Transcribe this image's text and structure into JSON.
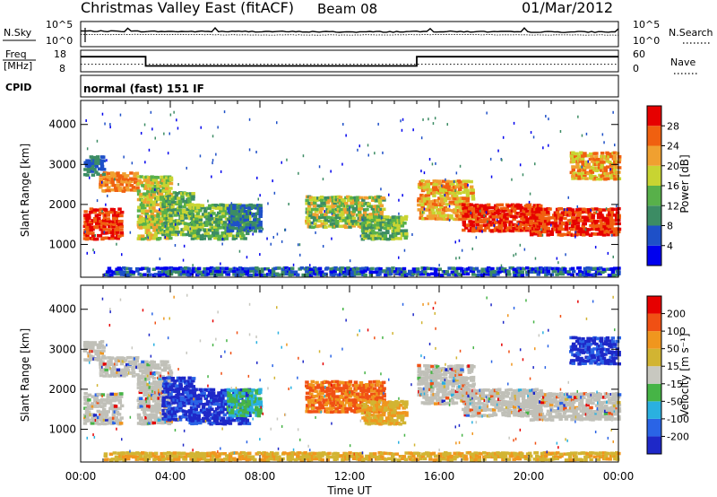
{
  "header": {
    "title": "Christmas Valley East (fitACF)",
    "beam": "Beam 08",
    "date": "01/Mar/2012"
  },
  "colors": {
    "power_scale": [
      "#0000ee",
      "#1e50c8",
      "#3c8c64",
      "#58b04a",
      "#c8d432",
      "#f0a030",
      "#f06010",
      "#e60000"
    ],
    "velocity_scale": [
      "#1e28c8",
      "#2a64e6",
      "#2ab0e0",
      "#46b446",
      "#c8c8c0",
      "#d2b432",
      "#f0961e",
      "#f05014",
      "#e60000"
    ],
    "ground_scatter": "#c0c0b8"
  },
  "chart_data": [
    {
      "type": "line",
      "panel": "noise",
      "left_label": "N.Sky",
      "right_label": "N.Search",
      "left_ticks": [
        "10^5",
        "10^0"
      ],
      "right_ticks": [
        "10^5",
        "10^0"
      ],
      "x": [
        "00:00",
        "04:00",
        "08:00",
        "12:00",
        "16:00",
        "20:00",
        "00:00"
      ],
      "series": [
        {
          "values": [
            3.2,
            3.1,
            3.1,
            3.0,
            3.1,
            3.0,
            3.0
          ]
        },
        {
          "values": [
            2.4,
            2.4,
            2.3,
            2.3,
            2.4,
            2.3,
            2.3
          ]
        }
      ]
    },
    {
      "type": "line",
      "panel": "frequency",
      "left_label_lines": [
        "Freq",
        "[MHz]"
      ],
      "right_label": "Nave",
      "left_ticks": [
        "18",
        "8"
      ],
      "right_ticks": [
        "60",
        "0"
      ],
      "ylim": [
        8,
        18
      ],
      "points": [
        [
          0,
          15
        ],
        [
          2.9,
          15
        ],
        [
          2.9,
          10.7
        ],
        [
          15.0,
          10.7
        ],
        [
          15.0,
          15
        ],
        [
          24,
          15
        ]
      ],
      "nave_value": 11.5
    },
    {
      "type": "heatmap",
      "panel": "power",
      "cpid_label": "CPID",
      "cpid_text": "normal (fast) 151 IF",
      "ylabel": "Slant Range [km]",
      "y_ticks": [
        "1000",
        "2000",
        "3000",
        "4000"
      ],
      "ylim": [
        180,
        4600
      ],
      "xlim": [
        0,
        24
      ],
      "x_ticks": [
        "00:00",
        "04:00",
        "08:00",
        "12:00",
        "16:00",
        "20:00",
        "00:00"
      ],
      "colorbar_label": "Power [dB]",
      "colorbar_ticks": [
        "4",
        "8",
        "12",
        "16",
        "20",
        "24",
        "28"
      ]
    },
    {
      "type": "heatmap",
      "panel": "velocity",
      "ylabel": "Slant Range [km]",
      "y_ticks": [
        "1000",
        "2000",
        "3000",
        "4000"
      ],
      "ylim": [
        180,
        4600
      ],
      "xlim": [
        0,
        24
      ],
      "x_ticks": [
        "00:00",
        "04:00",
        "08:00",
        "12:00",
        "16:00",
        "20:00",
        "00:00"
      ],
      "xlabel": "Time UT",
      "colorbar_label": "Velocity [m s⁻¹]",
      "colorbar_ticks": [
        "200",
        "100",
        "50",
        "15",
        "-15",
        "-50",
        "-100",
        "-200"
      ]
    }
  ]
}
